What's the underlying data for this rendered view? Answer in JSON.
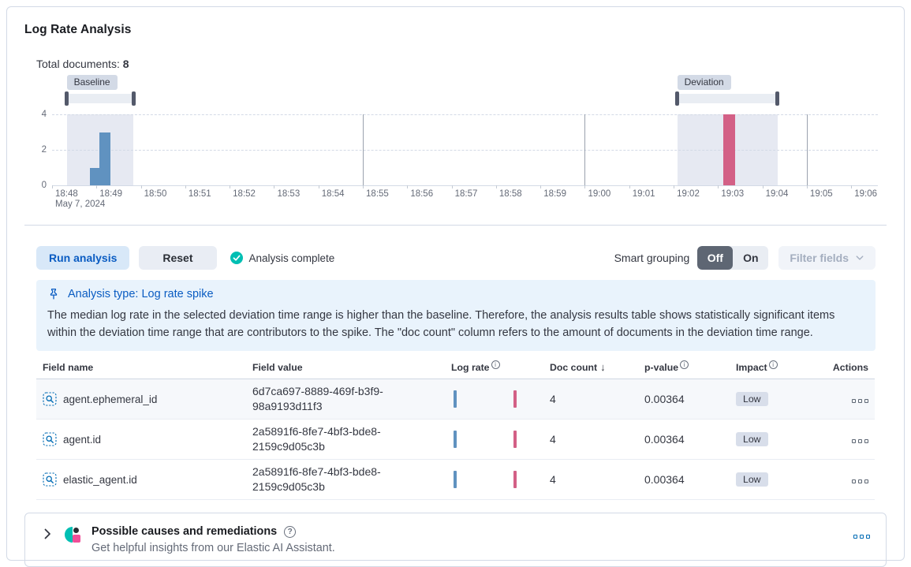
{
  "header": {
    "title": "Log Rate Analysis",
    "total_documents_label": "Total documents:",
    "total_documents_value": "8"
  },
  "chart_data": {
    "type": "bar",
    "title": "Log rate document count histogram",
    "x_axis": {
      "tick_labels": [
        "18:48",
        "18:49",
        "18:50",
        "18:51",
        "18:52",
        "18:53",
        "18:54",
        "18:55",
        "18:56",
        "18:57",
        "18:58",
        "18:59",
        "19:00",
        "19:01",
        "19:02",
        "19:03",
        "19:04",
        "19:05",
        "19:06"
      ],
      "date_label": "May 7, 2024",
      "minutes_span": 18.6
    },
    "y_axis": {
      "ticks": [
        0,
        2,
        4
      ],
      "max": 4
    },
    "windows": {
      "baseline": {
        "label": "Baseline",
        "start_min": 0.33,
        "end_min": 1.83,
        "start_time": "18:48:20",
        "end_time": "18:49:50"
      },
      "deviation": {
        "label": "Deviation",
        "start_min": 14.08,
        "end_min": 16.34,
        "start_time": "19:02:05",
        "end_time": "19:04:20"
      }
    },
    "bars": [
      {
        "series": "baseline",
        "time": "18:48:51",
        "start_min": 0.845,
        "end_min": 1.07,
        "doc_count": 1
      },
      {
        "series": "baseline",
        "time": "18:49:04",
        "start_min": 1.07,
        "end_min": 1.32,
        "doc_count": 3
      },
      {
        "series": "deviation",
        "time": "19:03:07",
        "start_min": 15.12,
        "end_min": 15.39,
        "doc_count": 4
      }
    ],
    "vertical_gridlines_min": [
      7,
      12,
      17
    ],
    "legend": "off",
    "colors": {
      "baseline_bar": "#6092C0",
      "deviation_bar": "#D36086",
      "window_fill": "#E6E9F2",
      "brush_bar": "#E9EDF3",
      "brush_handle": "#53596A"
    }
  },
  "controls": {
    "run_label": "Run analysis",
    "reset_label": "Reset",
    "status_text": "Analysis complete",
    "smart_grouping_label": "Smart grouping",
    "off_label": "Off",
    "on_label": "On",
    "filter_fields_label": "Filter fields"
  },
  "callout": {
    "title": "Analysis type: Log rate spike",
    "body": "The median log rate in the selected deviation time range is higher than the baseline. Therefore, the analysis results table shows statistically significant items within the deviation time range that are contributors to the spike. The \"doc count\" column refers to the amount of documents in the deviation time range."
  },
  "table": {
    "columns": [
      {
        "label": "Field name"
      },
      {
        "label": "Field value"
      },
      {
        "label": "Log rate",
        "info": true
      },
      {
        "label": "Doc count",
        "sort": "desc"
      },
      {
        "label": "p-value",
        "info": true
      },
      {
        "label": "Impact",
        "info": true
      },
      {
        "label": "Actions"
      }
    ],
    "rows": [
      {
        "field_name": "agent.ephemeral_id",
        "field_value": "6d7ca697-8889-469f-b3f9-98a9193d11f3",
        "doc_count": "4",
        "p_value": "0.00364",
        "impact": "Low"
      },
      {
        "field_name": "agent.id",
        "field_value": "2a5891f6-8fe7-4bf3-bde8-2159c9d05c3b",
        "doc_count": "4",
        "p_value": "0.00364",
        "impact": "Low"
      },
      {
        "field_name": "elastic_agent.id",
        "field_value": "2a5891f6-8fe7-4bf3-bde8-2159c9d05c3b",
        "doc_count": "4",
        "p_value": "0.00364",
        "impact": "Low"
      }
    ]
  },
  "insights": {
    "title": "Possible causes and remediations",
    "subtitle": "Get helpful insights from our Elastic AI Assistant."
  },
  "icons": {
    "info_glyph": "i",
    "help_glyph": "?",
    "sort_desc_glyph": "↓"
  },
  "colors": {
    "primary": "#0A5CC2",
    "primary_icon": "#006BB4",
    "primary_light_bg": "#D8E8F8",
    "teal_success": "#00BFB3",
    "pink": "#F04E98",
    "callout_bg": "#E9F3FC",
    "badge_bg": "#D8DEEA",
    "toggle_off_bg": "#5E6673"
  }
}
